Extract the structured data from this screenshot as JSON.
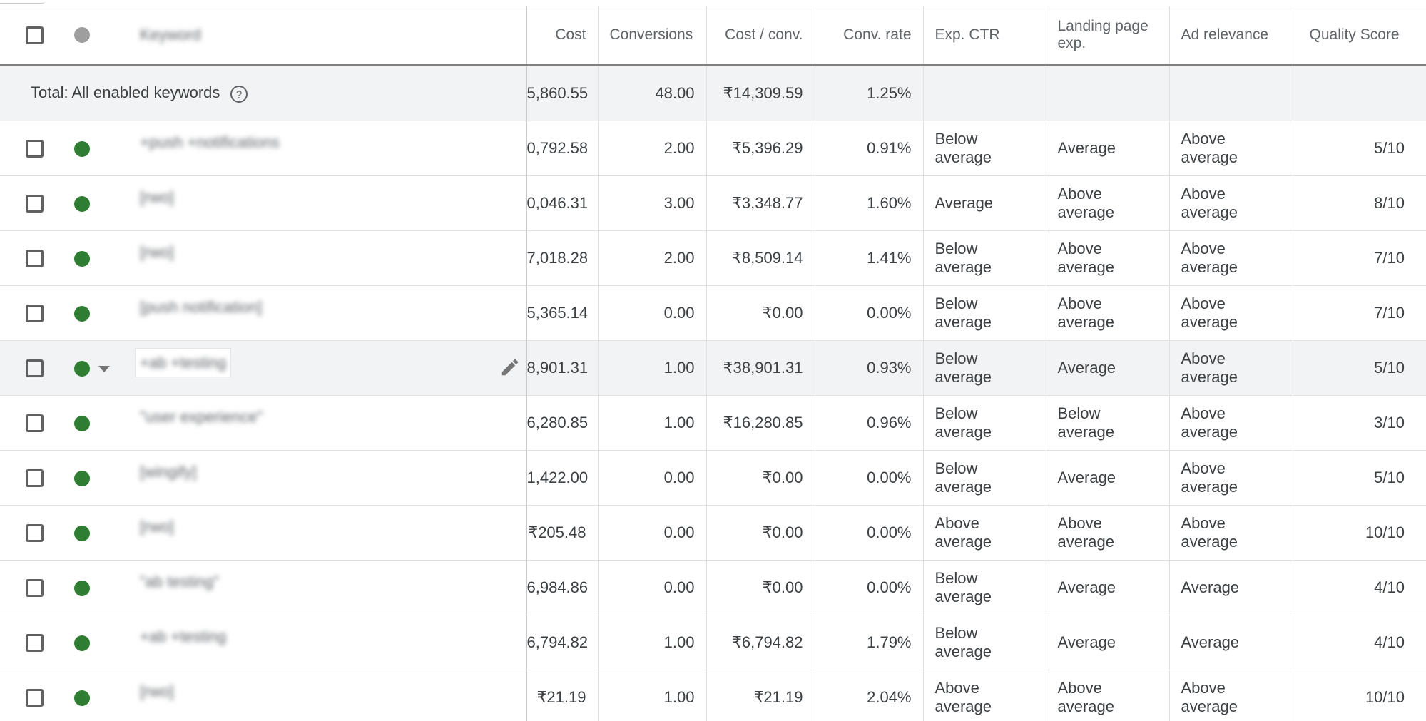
{
  "colors": {
    "enabled": "#2e7d32",
    "header_status": "#9e9e9e"
  },
  "header": {
    "keyword": "Keyword",
    "cost": "Cost",
    "conversions": "Conversions",
    "cost_conv": "Cost / conv.",
    "conv_rate": "Conv. rate",
    "exp_ctr": "Exp. CTR",
    "landing_page": "Landing page exp.",
    "ad_relevance": "Ad relevance",
    "quality_score": "Quality Score"
  },
  "total": {
    "label": "Total: All enabled keywords",
    "help_icon": "help-circle-icon",
    "cost": "5,860.55",
    "conversions": "48.00",
    "cost_conv": "₹14,309.59",
    "conv_rate": "1.25%"
  },
  "rows": [
    {
      "keyword": "+push +notifications",
      "cost": "0,792.58",
      "conversions": "2.00",
      "cost_conv": "₹5,396.29",
      "conv_rate": "0.91%",
      "exp_ctr": "Below average",
      "landing": "Average",
      "ad_rel": "Above average",
      "qs": "5/10"
    },
    {
      "keyword": "[rwo]",
      "cost": "0,046.31",
      "conversions": "3.00",
      "cost_conv": "₹3,348.77",
      "conv_rate": "1.60%",
      "exp_ctr": "Average",
      "landing": "Above average",
      "ad_rel": "Above average",
      "qs": "8/10"
    },
    {
      "keyword": "[rwo]",
      "cost": "7,018.28",
      "conversions": "2.00",
      "cost_conv": "₹8,509.14",
      "conv_rate": "1.41%",
      "exp_ctr": "Below average",
      "landing": "Above average",
      "ad_rel": "Above average",
      "qs": "7/10"
    },
    {
      "keyword": "[push notification]",
      "cost": "5,365.14",
      "conversions": "0.00",
      "cost_conv": "₹0.00",
      "conv_rate": "0.00%",
      "exp_ctr": "Below average",
      "landing": "Above average",
      "ad_rel": "Above average",
      "qs": "7/10"
    },
    {
      "keyword": "+ab +testing",
      "cost": "8,901.31",
      "conversions": "1.00",
      "cost_conv": "₹38,901.31",
      "conv_rate": "0.93%",
      "exp_ctr": "Below average",
      "landing": "Average",
      "ad_rel": "Above average",
      "qs": "5/10"
    },
    {
      "keyword": "\"user experience\"",
      "cost": "6,280.85",
      "conversions": "1.00",
      "cost_conv": "₹16,280.85",
      "conv_rate": "0.96%",
      "exp_ctr": "Below average",
      "landing": "Below average",
      "ad_rel": "Above average",
      "qs": "3/10"
    },
    {
      "keyword": "[wingify]",
      "cost": "1,422.00",
      "conversions": "0.00",
      "cost_conv": "₹0.00",
      "conv_rate": "0.00%",
      "exp_ctr": "Below average",
      "landing": "Average",
      "ad_rel": "Above average",
      "qs": "5/10"
    },
    {
      "keyword": "[rwo]",
      "cost": "₹205.48",
      "conversions": "0.00",
      "cost_conv": "₹0.00",
      "conv_rate": "0.00%",
      "exp_ctr": "Above average",
      "landing": "Above average",
      "ad_rel": "Above average",
      "qs": "10/10"
    },
    {
      "keyword": "\"ab testing\"",
      "cost": "6,984.86",
      "conversions": "0.00",
      "cost_conv": "₹0.00",
      "conv_rate": "0.00%",
      "exp_ctr": "Below average",
      "landing": "Average",
      "ad_rel": "Average",
      "qs": "4/10"
    },
    {
      "keyword": "+ab +testing",
      "cost": "6,794.82",
      "conversions": "1.00",
      "cost_conv": "₹6,794.82",
      "conv_rate": "1.79%",
      "exp_ctr": "Below average",
      "landing": "Average",
      "ad_rel": "Average",
      "qs": "4/10"
    },
    {
      "keyword": "[rwo]",
      "cost": "₹21.19",
      "conversions": "1.00",
      "cost_conv": "₹21.19",
      "conv_rate": "2.04%",
      "exp_ctr": "Above average",
      "landing": "Above average",
      "ad_rel": "Above average",
      "qs": "10/10"
    }
  ]
}
